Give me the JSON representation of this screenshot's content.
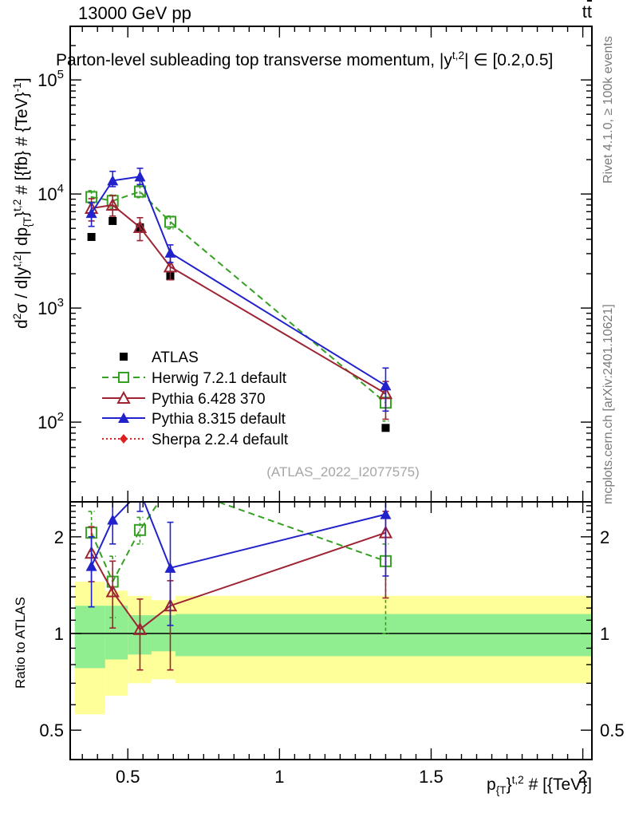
{
  "header": {
    "left": "13000 GeV pp",
    "right_parts": [
      {
        "t": "t"
      },
      {
        "t": "t",
        "bar": true
      }
    ]
  },
  "side_notes": {
    "top": "Rivet 4.1.0, ≥ 100k events",
    "bottom": "mcplots.cern.ch [arXiv:2401.10621]"
  },
  "watermark": "(ATLAS_2022_I2077575)",
  "chart_data": {
    "type": "line",
    "title_parts": [
      {
        "t": "Parton-level subleading top transverse momentum, |y"
      },
      {
        "t": "t,2",
        "sup": true
      },
      {
        "t": "| ∈ [0.2,0.5]"
      }
    ],
    "xlabel_parts": [
      {
        "t": "p"
      },
      {
        "t": "{T",
        "sub": true
      },
      {
        "t": "}"
      },
      {
        "t": "t,2",
        "sup": true
      },
      {
        "t": " # [{TeV}]"
      }
    ],
    "ylabel_main_parts": [
      {
        "t": "d"
      },
      {
        "t": "2",
        "sup": true
      },
      {
        "t": "σ / d|y"
      },
      {
        "t": "t,2",
        "sup": true
      },
      {
        "t": "| dp"
      },
      {
        "t": "{T",
        "sub": true
      },
      {
        "t": "}"
      },
      {
        "t": "t,2",
        "sup": true
      },
      {
        "t": " # [{fb} # {TeV}"
      },
      {
        "t": "-1",
        "sup": true
      },
      {
        "t": "]"
      }
    ],
    "ylabel_ratio": "Ratio to ATLAS",
    "x_axis": {
      "lim": [
        0.31,
        2.03
      ],
      "major_ticks": [
        0.5,
        1,
        1.5,
        2
      ],
      "major_labels": [
        "0.5",
        "1",
        "1.5",
        "2"
      ],
      "minor_step": 0.05
    },
    "y_axis_main": {
      "scale": "log",
      "lim": [
        20,
        295000
      ],
      "decade_exponents": [
        2,
        3,
        4,
        5
      ]
    },
    "y_axis_ratio": {
      "scale": "log",
      "lim": [
        0.405,
        2.57
      ],
      "major_ticks": [
        0.5,
        1,
        2
      ],
      "major_labels": [
        "0.5",
        "1",
        "2"
      ],
      "minor_step": 0.1,
      "minor_range": [
        0.5,
        2.5
      ]
    },
    "reference_line": 1,
    "x": [
      0.38,
      0.45,
      0.54,
      0.64,
      1.35
    ],
    "series": [
      {
        "label": "ATLAS",
        "color": "#000000",
        "marker": "square-filled",
        "line": "none",
        "values": [
          4200,
          5800,
          5100,
          1900,
          89
        ],
        "ratio": []
      },
      {
        "label": "Herwig 7.2.1 default",
        "color": "#35a022",
        "marker": "square-open",
        "line": "dashed",
        "values": [
          9400,
          8700,
          10500,
          5700,
          148
        ],
        "err_lo": [
          8300,
          7500,
          9300,
          4950,
          102
        ],
        "err_hi": [
          10700,
          9800,
          11900,
          6400,
          178
        ],
        "ratio": [
          2.06,
          1.45,
          2.1,
          2.9,
          1.68
        ],
        "ratio_lo": [
          1.8,
          1.12,
          1.9,
          2.6,
          1.0
        ],
        "ratio_hi": [
          2.4,
          1.74,
          2.3,
          3.1,
          1.9
        ]
      },
      {
        "label": "Pythia 6.428 370",
        "color": "#9e2333",
        "marker": "triangle-open",
        "line": "solid",
        "values": [
          7500,
          8000,
          5100,
          2300,
          178
        ],
        "err_lo": [
          5800,
          6400,
          3900,
          1770,
          106
        ],
        "err_hi": [
          9100,
          9700,
          6200,
          2870,
          227
        ],
        "ratio": [
          1.78,
          1.35,
          1.03,
          1.22,
          2.06
        ],
        "ratio_lo": [
          1.45,
          1.04,
          0.77,
          0.77,
          1.29
        ],
        "ratio_hi": [
          2.15,
          1.68,
          1.28,
          1.46,
          2.4
        ]
      },
      {
        "label": "Pythia 8.315 default",
        "color": "#2222cc",
        "marker": "triangle-filled",
        "line": "solid",
        "values": [
          6800,
          13100,
          14200,
          3050,
          209
        ],
        "err_lo": [
          5200,
          11600,
          12100,
          2510,
          125
        ],
        "err_hi": [
          8400,
          15800,
          16800,
          3580,
          298
        ],
        "ratio": [
          1.62,
          2.26,
          2.77,
          1.6,
          2.35
        ],
        "ratio_lo": [
          1.21,
          1.9,
          2.4,
          1.06,
          1.51
        ],
        "ratio_hi": [
          2.0,
          2.7,
          3.1,
          2.22,
          2.6
        ]
      },
      {
        "label": "Sherpa 2.2.4 default",
        "color": "#e02020",
        "marker": "diamond-filled",
        "line": "dotted",
        "values": [],
        "ratio": []
      }
    ],
    "bands": {
      "edges": [
        0.325,
        0.425,
        0.5,
        0.578,
        0.657,
        2.03
      ],
      "yellow": [
        [
          0.56,
          1.45
        ],
        [
          0.64,
          1.36
        ],
        [
          0.7,
          1.31
        ],
        [
          0.72,
          1.27
        ],
        [
          0.7,
          1.31
        ]
      ],
      "green": [
        [
          0.78,
          1.22
        ],
        [
          0.83,
          1.22
        ],
        [
          0.86,
          1.14
        ],
        [
          0.88,
          1.14
        ],
        [
          0.85,
          1.15
        ]
      ],
      "colors": {
        "outer": "#ffff99",
        "inner": "#90ee90"
      }
    }
  }
}
